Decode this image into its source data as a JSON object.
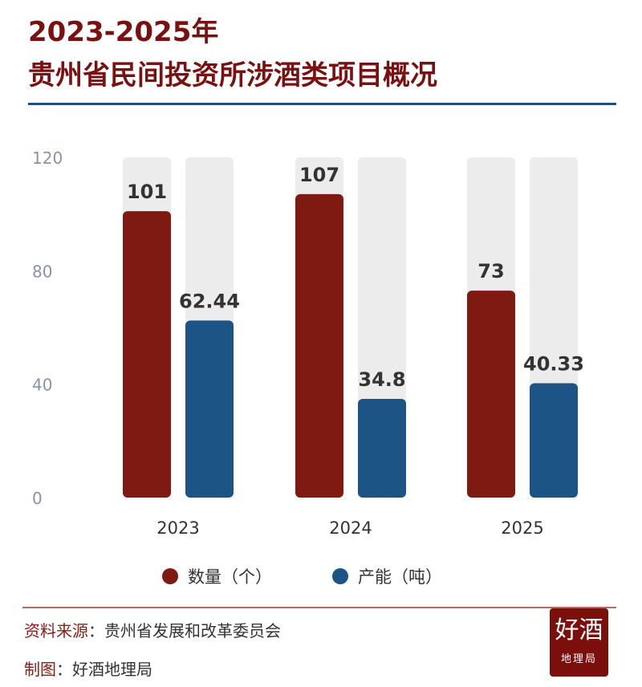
{
  "title_line1": "2023-2025年",
  "title_line2": "贵州省民间投资所涉酒类项目概况",
  "footer": {
    "source_label": "资料来源",
    "source_value": "贵州省发展和改革委员会",
    "maker_label": "制图",
    "maker_value": "好酒地理局",
    "sep": "："
  },
  "logo": {
    "text": "好酒地理局"
  },
  "chart_data": {
    "type": "bar",
    "categories": [
      "2023",
      "2024",
      "2025"
    ],
    "series": [
      {
        "name": "数量（个）",
        "values": [
          101,
          107,
          73
        ],
        "color": "#7f1a12"
      },
      {
        "name": "产能（吨）",
        "values": [
          62.44,
          34.8,
          40.33
        ],
        "color": "#1c5585"
      }
    ],
    "data_labels": [
      [
        "101",
        "107",
        "73"
      ],
      [
        "62.44",
        "34.8",
        "40.33"
      ]
    ],
    "yticks": [
      0,
      40,
      80,
      120
    ],
    "ylim": [
      0,
      120
    ],
    "grid": false,
    "legend": "bottom",
    "background_bar_color": "#ececec"
  }
}
